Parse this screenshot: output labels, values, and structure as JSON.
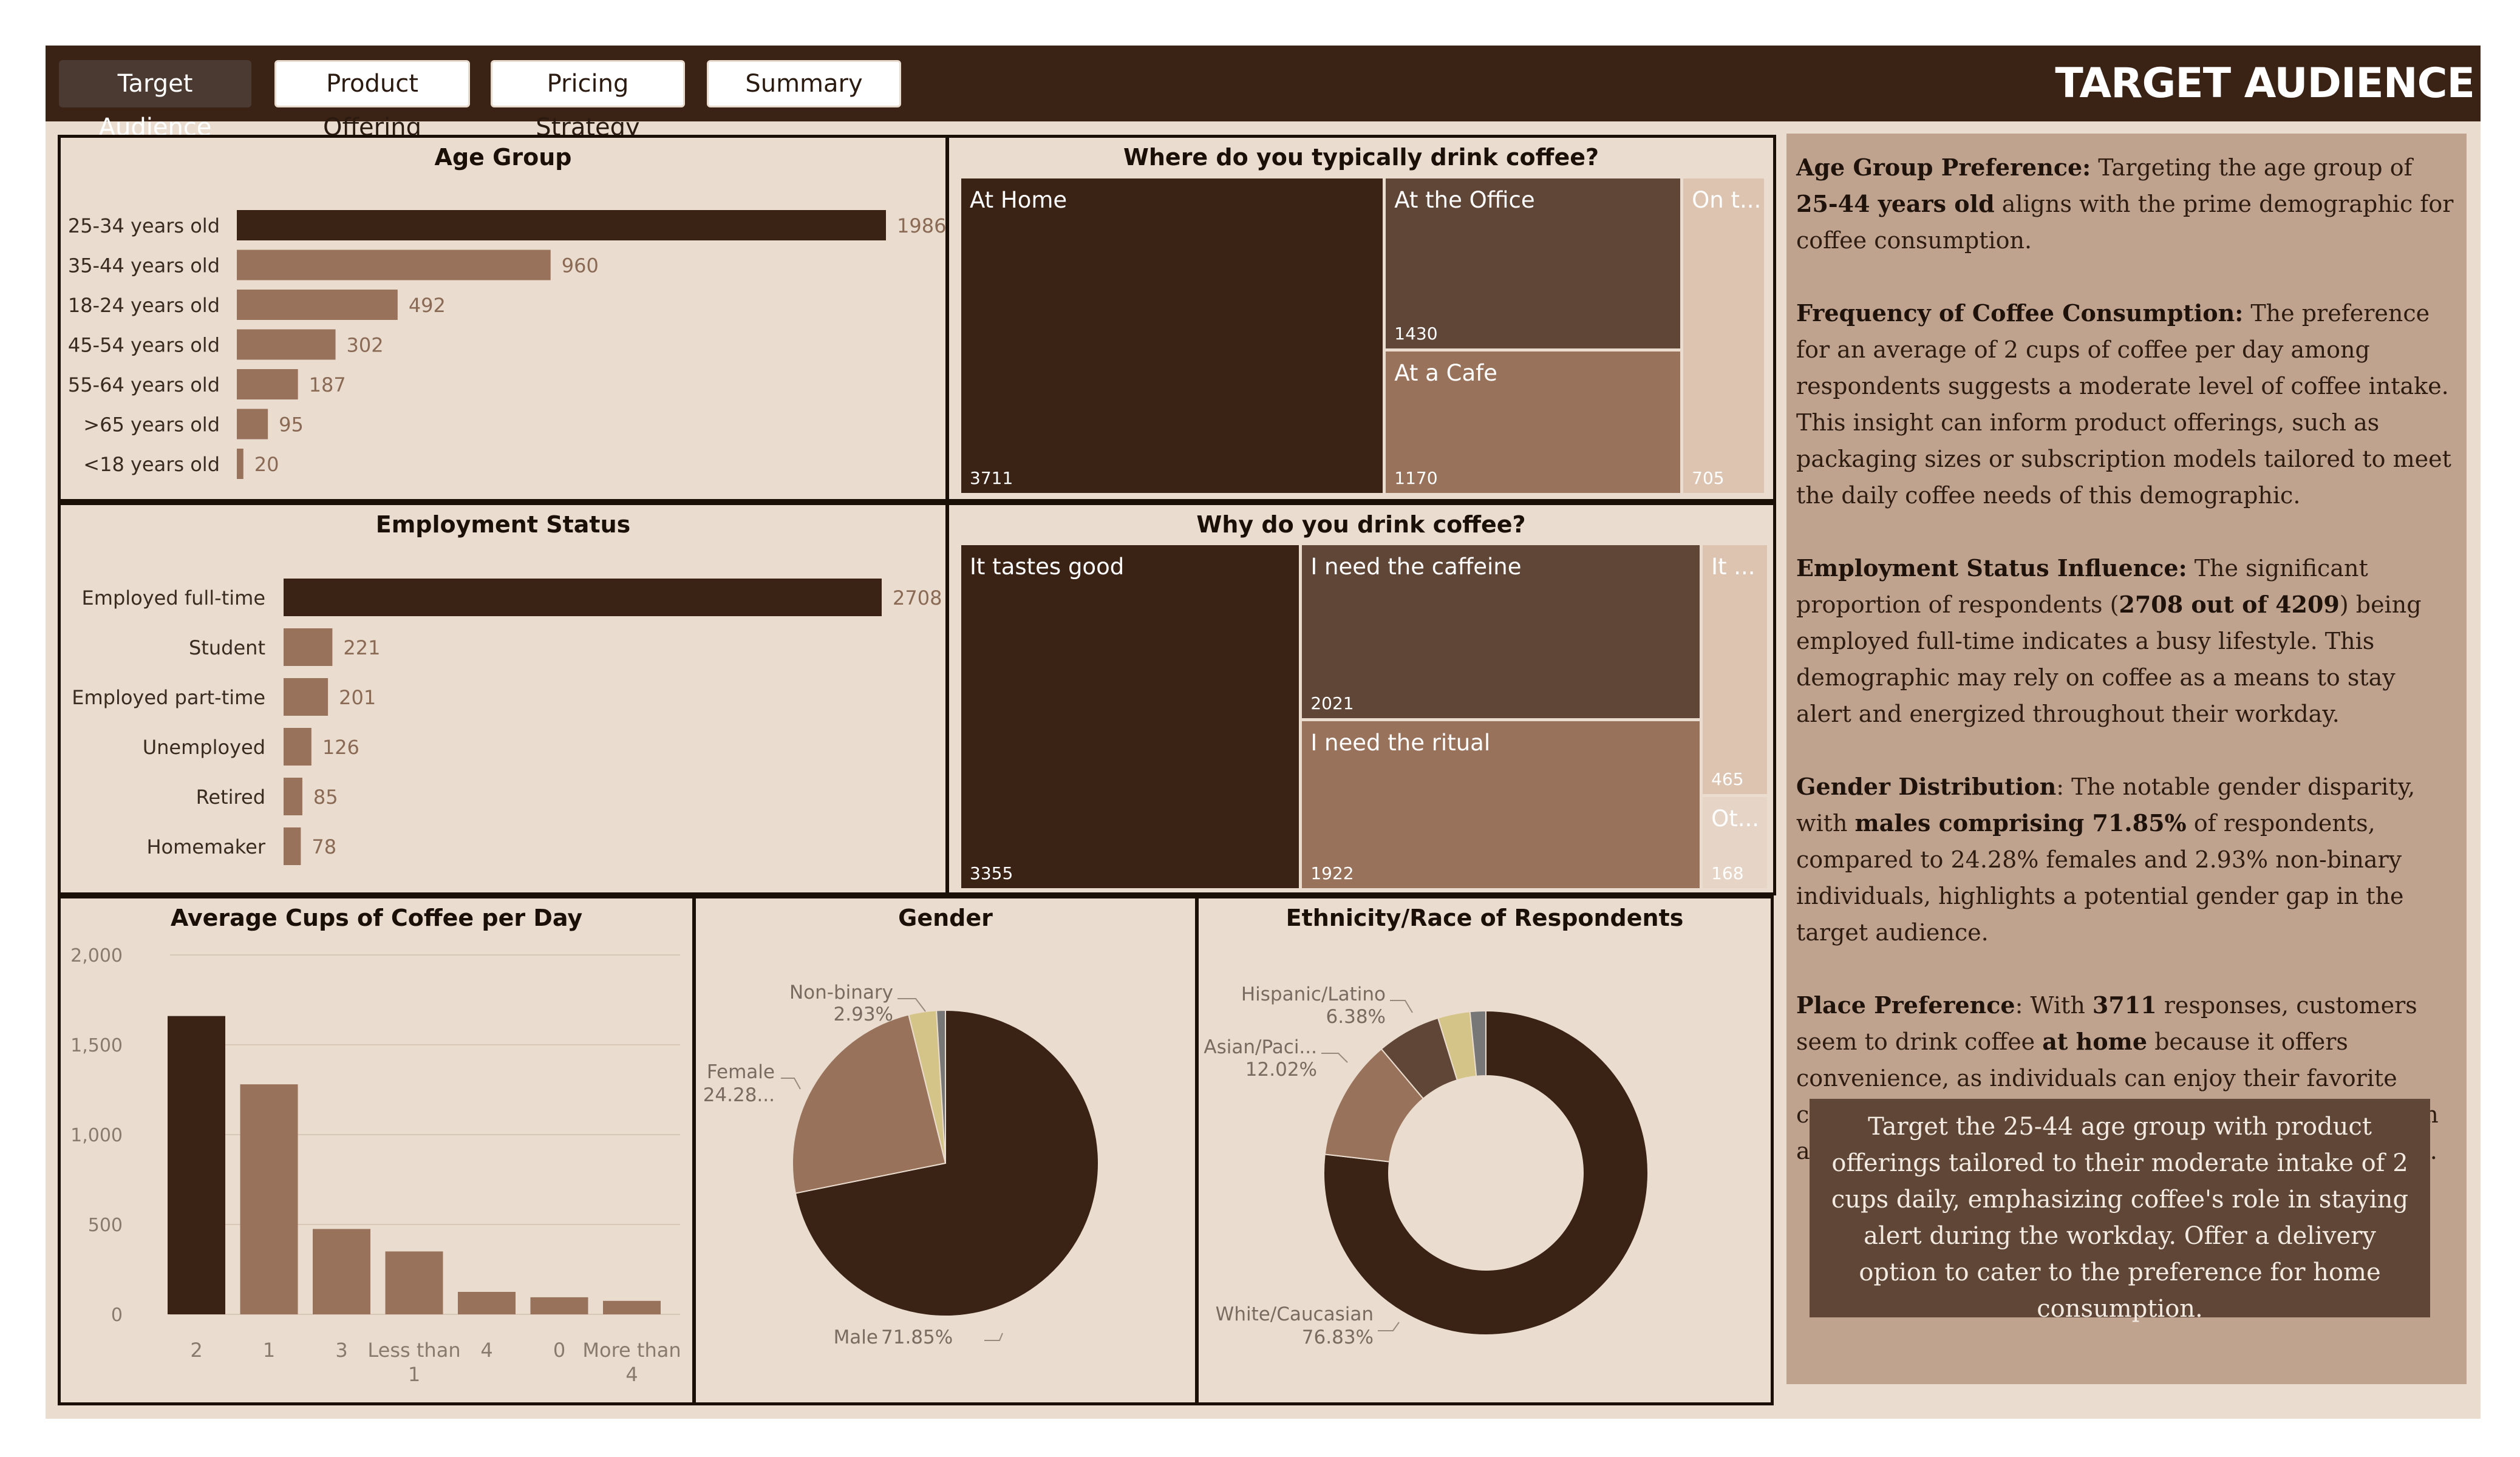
{
  "tabs": [
    {
      "label": "Target Audience",
      "active": true
    },
    {
      "label": "Product Offering",
      "active": false
    },
    {
      "label": "Pricing Strategy",
      "active": false
    },
    {
      "label": "Summary",
      "active": false
    }
  ],
  "page_title": "TARGET AUDIENCE",
  "colors": {
    "darkest": "#3a2215",
    "dark": "#5f4637",
    "medium": "#98725a",
    "light": "#dcc4b0",
    "tan": "#d5c487",
    "gray": "#777777",
    "background": "#eaddcf",
    "sidebar": "#bfa38f"
  },
  "chart_data": [
    {
      "type": "bar",
      "orientation": "horizontal",
      "title": "Age Group",
      "categories": [
        "25-34 years old",
        "35-44 years old",
        "18-24 years old",
        "45-54 years old",
        "55-64 years old",
        ">65 years old",
        "<18 years old"
      ],
      "values": [
        1986,
        960,
        492,
        302,
        187,
        95,
        20
      ]
    },
    {
      "type": "treemap",
      "title": "Where do you typically drink coffee?",
      "items": [
        {
          "label": "At Home",
          "value": 3711
        },
        {
          "label": "At the Office",
          "value": 1430
        },
        {
          "label": "At a Cafe",
          "value": 1170
        },
        {
          "label": "On t...",
          "value": 705
        }
      ]
    },
    {
      "type": "bar",
      "orientation": "horizontal",
      "title": "Employment Status",
      "categories": [
        "Employed full-time",
        "Student",
        "Employed part-time",
        "Unemployed",
        "Retired",
        "Homemaker"
      ],
      "values": [
        2708,
        221,
        201,
        126,
        85,
        78
      ]
    },
    {
      "type": "treemap",
      "title": "Why do you drink coffee?",
      "items": [
        {
          "label": "It tastes good",
          "value": 3355
        },
        {
          "label": "I need the caffeine",
          "value": 2021
        },
        {
          "label": "I need the ritual",
          "value": 1922
        },
        {
          "label": "It ...",
          "value": 465
        },
        {
          "label": "Ot...",
          "value": 168
        }
      ]
    },
    {
      "type": "bar",
      "title": "Average Cups of Coffee per Day",
      "categories": [
        "2",
        "1",
        "3",
        "Less than 1",
        "4",
        "0",
        "More than 4"
      ],
      "values": [
        1660,
        1280,
        475,
        350,
        125,
        95,
        75
      ],
      "ylim": [
        0,
        2000
      ],
      "yticks": [
        "0",
        "500",
        "1,000",
        "1,500",
        "2,000"
      ],
      "grid": true
    },
    {
      "type": "pie",
      "title": "Gender",
      "slices": [
        {
          "label": "Male",
          "value": 71.85,
          "display": "71.85%"
        },
        {
          "label": "Female",
          "value": 24.28,
          "display": "24.28..."
        },
        {
          "label": "Non-binary",
          "value": 2.93,
          "display": "2.93%"
        },
        {
          "label": "",
          "value": 0.94
        }
      ]
    },
    {
      "type": "donut",
      "title": "Ethnicity/Race of Respondents",
      "slices": [
        {
          "label": "White/Caucasian",
          "value": 76.83,
          "display": "76.83%"
        },
        {
          "label": "Asian/Paci...",
          "value": 12.02,
          "display": "12.02%"
        },
        {
          "label": "Hispanic/Latino",
          "value": 6.38,
          "display": "6.38%"
        },
        {
          "label": "",
          "value": 3.2
        },
        {
          "label": "",
          "value": 1.57
        }
      ]
    }
  ],
  "insights": [
    {
      "segments": [
        {
          "t": "Age Group Preference:",
          "b": true
        },
        {
          "t": " Targeting the age group of "
        },
        {
          "t": "25-44 years old",
          "b": true
        },
        {
          "t": " aligns with the prime demographic for coffee consumption."
        }
      ]
    },
    {
      "segments": [
        {
          "t": "Frequency of Coffee Consumption:",
          "b": true
        },
        {
          "t": " The preference for an average of 2 cups of coffee per day among respondents suggests a moderate level of coffee intake. This insight can inform product offerings, such as packaging sizes or subscription models tailored to meet the daily coffee needs of this demographic."
        }
      ]
    },
    {
      "segments": [
        {
          "t": "Employment Status Influence:",
          "b": true
        },
        {
          "t": " The significant proportion of respondents ("
        },
        {
          "t": "2708 out of 4209",
          "b": true
        },
        {
          "t": ") being employed full-time indicates a busy lifestyle. This demographic may rely on coffee as a means to stay alert and energized throughout their workday."
        }
      ]
    },
    {
      "segments": [
        {
          "t": "Gender Distribution",
          "b": true
        },
        {
          "t": ": The notable gender disparity, with "
        },
        {
          "t": "males comprising 71.85%",
          "b": true
        },
        {
          "t": " of respondents, compared to 24.28% females and 2.93% non-binary individuals, highlights a potential gender gap in the target audience."
        }
      ]
    },
    {
      "segments": [
        {
          "t": "Place Preference",
          "b": true
        },
        {
          "t": ": With "
        },
        {
          "t": "3711",
          "b": true
        },
        {
          "t": " responses, customers seem to drink coffee "
        },
        {
          "t": "at home",
          "b": true
        },
        {
          "t": " because it offers convenience, as individuals can enjoy their favorite coffee without having to leave their house or to wait in a line. A delivery option could cater to this preference."
        }
      ]
    }
  ],
  "callout": "Target the 25-44 age group with product offerings tailored to their moderate intake of 2 cups daily, emphasizing coffee's role in staying alert during the workday. Offer a delivery option to cater to the preference for home consumption."
}
